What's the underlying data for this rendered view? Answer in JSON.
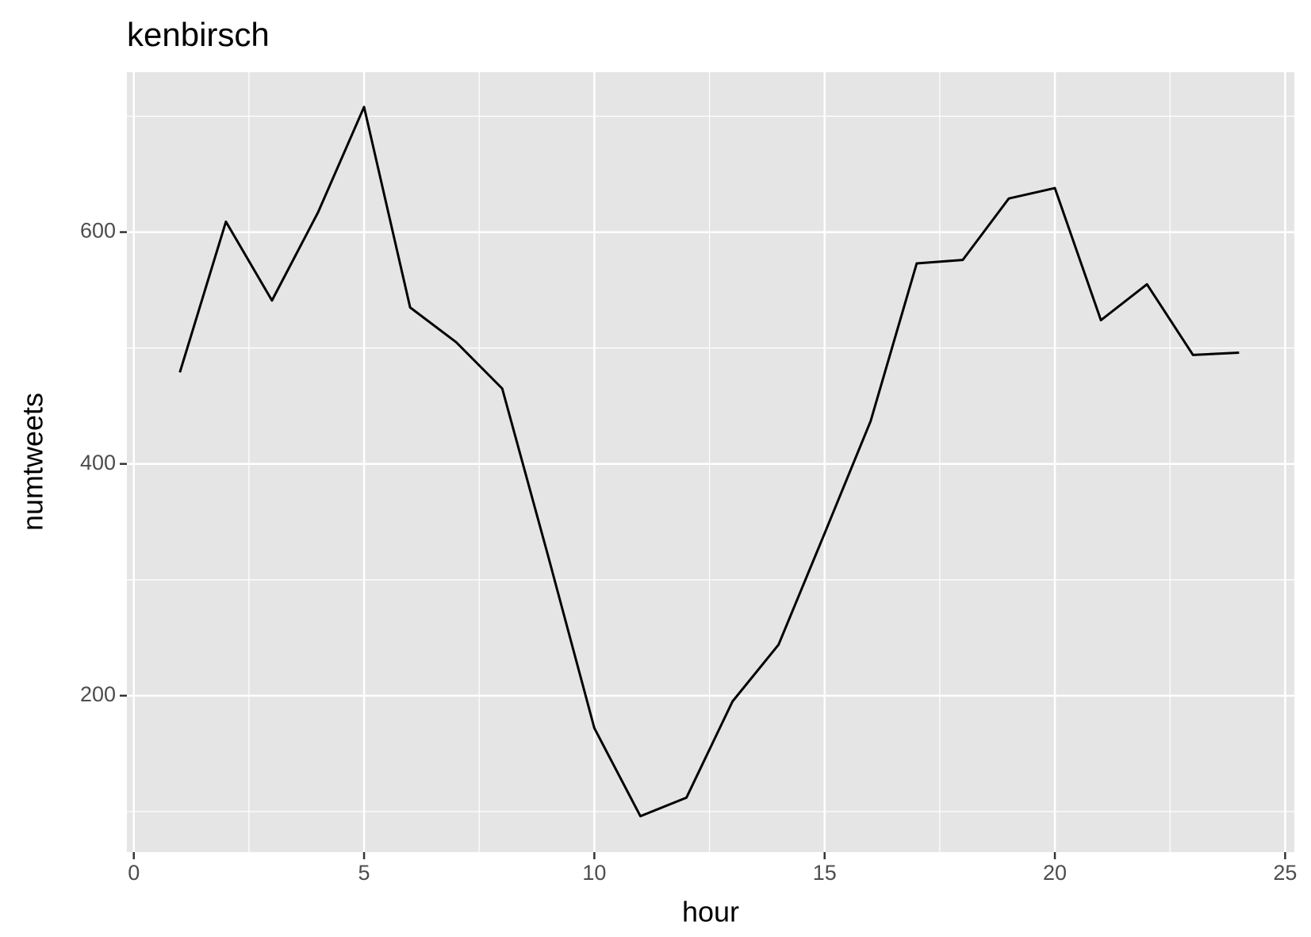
{
  "chart_data": {
    "type": "line",
    "title": "kenbirsch",
    "xlabel": "hour",
    "ylabel": "numtweets",
    "x": [
      1,
      2,
      3,
      4,
      5,
      6,
      7,
      8,
      9,
      10,
      11,
      12,
      13,
      14,
      15,
      16,
      17,
      18,
      19,
      20,
      21,
      22,
      23,
      24
    ],
    "series": [
      {
        "name": "numtweets",
        "color": "#000000",
        "values": [
          479,
          609,
          541,
          617,
          708,
          535,
          505,
          465,
          320,
          172,
          96,
          112,
          195,
          244,
          340,
          437,
          573,
          576,
          629,
          638,
          524,
          555,
          494,
          496
        ]
      }
    ],
    "xlim": [
      -0.15,
      25.2
    ],
    "xticks": [
      0,
      5,
      10,
      15,
      20,
      25
    ],
    "xminor": [
      2.5,
      7.5,
      12.5,
      17.5,
      22.5
    ],
    "ylim": [
      65,
      738
    ],
    "yticks": [
      200,
      400,
      600
    ],
    "yminor": [
      100,
      300,
      500,
      700
    ],
    "grid": true
  }
}
